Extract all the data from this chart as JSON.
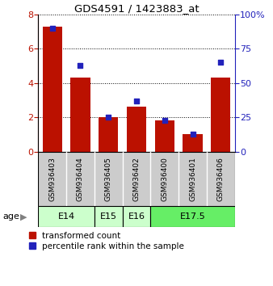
{
  "title": "GDS4591 / 1423883_at",
  "samples": [
    "GSM936403",
    "GSM936404",
    "GSM936405",
    "GSM936402",
    "GSM936400",
    "GSM936401",
    "GSM936406"
  ],
  "red_values": [
    7.3,
    4.3,
    2.0,
    2.6,
    1.8,
    1.0,
    4.3
  ],
  "blue_values": [
    90,
    63,
    25,
    37,
    23,
    13,
    65
  ],
  "ylim_left": [
    0,
    8
  ],
  "ylim_right": [
    0,
    100
  ],
  "yticks_left": [
    0,
    2,
    4,
    6,
    8
  ],
  "yticks_right": [
    0,
    25,
    50,
    75,
    100
  ],
  "age_groups": [
    {
      "label": "E14",
      "start": 0,
      "end": 1,
      "color": "#ccffcc"
    },
    {
      "label": "E15",
      "start": 2,
      "end": 2,
      "color": "#ccffcc"
    },
    {
      "label": "E16",
      "start": 3,
      "end": 3,
      "color": "#ccffcc"
    },
    {
      "label": "E17.5",
      "start": 4,
      "end": 6,
      "color": "#66ee66"
    }
  ],
  "bar_color": "#bb1100",
  "dot_color": "#2222bb",
  "sample_bg_color": "#cccccc",
  "bar_width": 0.7,
  "dot_size": 25,
  "legend_red_label": "transformed count",
  "legend_blue_label": "percentile rank within the sample",
  "age_label": "age"
}
